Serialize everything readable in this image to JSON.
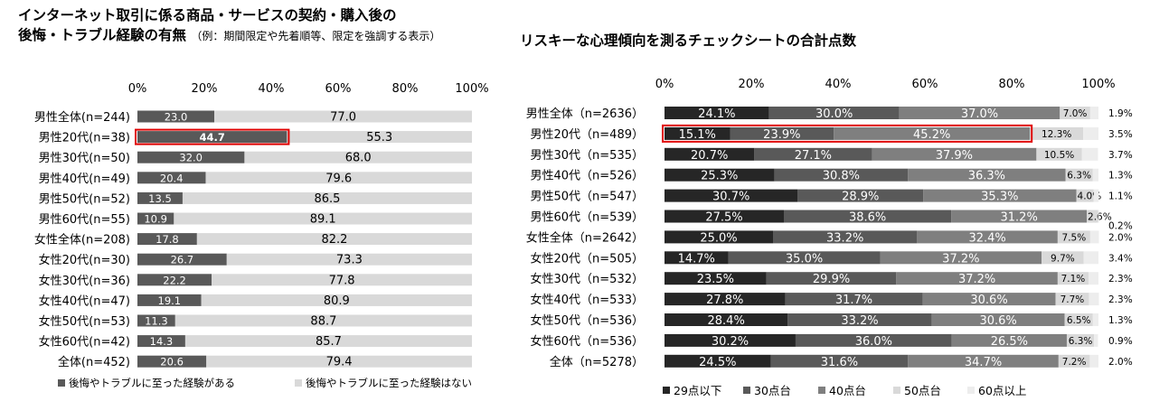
{
  "left": {
    "title_line1": "インターネット取引に係る商品・サービスの契約・購入後の",
    "title_line2": "後悔・トラブル経験の有無",
    "title_note": "（例：期間限定や先着順等、限定を強調する表示）"
  },
  "right": {
    "title": "リスキーな心理傾向を測るチェックシートの合計点数"
  },
  "colors": {
    "left_series": [
      "#595959",
      "#d9d9d9"
    ],
    "right_series": [
      "#262626",
      "#595959",
      "#7f7f7f",
      "#d9d9d9",
      "#ededed"
    ],
    "highlight": "#e00000"
  },
  "chart_data": [
    {
      "type": "bar",
      "orientation": "horizontal",
      "stacked": true,
      "xlim": [
        0,
        100
      ],
      "xticks": [
        "0%",
        "20%",
        "40%",
        "60%",
        "80%",
        "100%"
      ],
      "grid": false,
      "legend_position": "bottom",
      "highlight_category": "男性20代(n=38)",
      "categories": [
        "男性全体(n=244)",
        "男性20代(n=38)",
        "男性30代(n=50)",
        "男性40代(n=49)",
        "男性50代(n=52)",
        "男性60代(n=55)",
        "女性全体(n=208)",
        "女性20代(n=30)",
        "女性30代(n=36)",
        "女性40代(n=47)",
        "女性50代(n=53)",
        "女性60代(n=42)",
        "全体(n=452)"
      ],
      "series": [
        {
          "name": "後悔やトラブルに至った経験がある",
          "values": [
            23.0,
            44.7,
            32.0,
            20.4,
            13.5,
            10.9,
            17.8,
            26.7,
            22.2,
            19.1,
            11.3,
            14.3,
            20.6
          ]
        },
        {
          "name": "後悔やトラブルに至った経験はない",
          "values": [
            77.0,
            55.3,
            68.0,
            79.6,
            86.5,
            89.1,
            82.2,
            73.3,
            77.8,
            80.9,
            88.7,
            85.7,
            79.4
          ]
        }
      ]
    },
    {
      "type": "bar",
      "orientation": "horizontal",
      "stacked": true,
      "xlim": [
        0,
        100
      ],
      "xticks": [
        "0%",
        "20%",
        "40%",
        "60%",
        "80%",
        "100%"
      ],
      "grid": false,
      "legend_position": "bottom",
      "highlight_category": "男性20代（n=489）",
      "categories": [
        "男性全体（n=2636）",
        "男性20代（n=489）",
        "男性30代（n=535）",
        "男性40代（n=526）",
        "男性50代（n=547）",
        "男性60代（n=539）",
        "女性全体（n=2642）",
        "女性20代（n=505）",
        "女性30代（n=532）",
        "女性40代（n=533）",
        "女性50代（n=536）",
        "女性60代（n=536）",
        "全体（n=5278）"
      ],
      "series": [
        {
          "name": "29点以下",
          "values": [
            24.1,
            15.1,
            20.7,
            25.3,
            30.7,
            27.5,
            25.0,
            14.7,
            23.5,
            27.8,
            28.4,
            30.2,
            24.5
          ]
        },
        {
          "name": "30点台",
          "values": [
            30.0,
            23.9,
            27.1,
            30.8,
            28.9,
            38.6,
            33.2,
            35.0,
            29.9,
            31.7,
            33.2,
            36.0,
            31.6
          ]
        },
        {
          "name": "40点台",
          "values": [
            37.0,
            45.2,
            37.9,
            36.3,
            35.3,
            31.2,
            32.4,
            37.2,
            37.2,
            30.6,
            30.6,
            26.5,
            34.7
          ]
        },
        {
          "name": "50点台",
          "values": [
            7.0,
            12.3,
            10.5,
            6.3,
            4.0,
            2.6,
            7.5,
            9.7,
            7.1,
            7.7,
            6.5,
            6.3,
            7.2
          ]
        },
        {
          "name": "60点以上",
          "values": [
            1.9,
            3.5,
            3.7,
            1.3,
            1.1,
            0.2,
            2.0,
            3.4,
            2.3,
            2.3,
            1.3,
            0.9,
            2.0
          ]
        }
      ]
    }
  ]
}
